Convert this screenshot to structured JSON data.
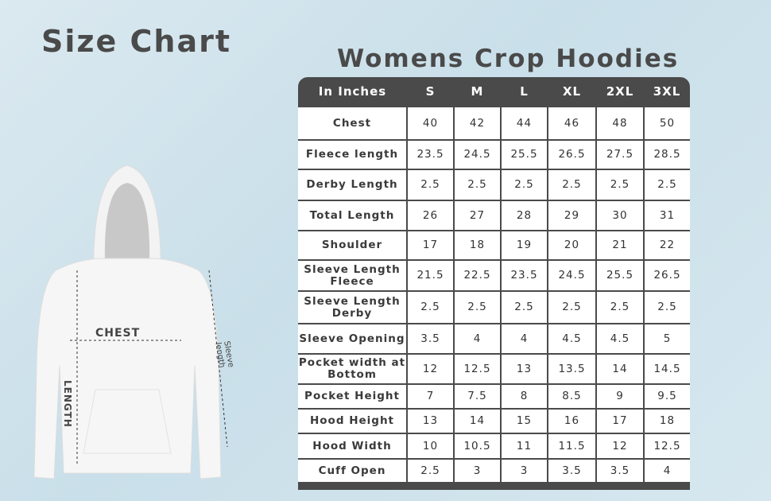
{
  "title": "Size Chart",
  "subtitle": "Womens Crop Hoodies",
  "diagram_labels": {
    "chest": "CHEST",
    "length": "LENGTH",
    "sleeve": "Sleeve length"
  },
  "table": {
    "headers": [
      "In Inches",
      "S",
      "M",
      "L",
      "XL",
      "2XL",
      "3XL"
    ],
    "rows": [
      {
        "label": "Chest",
        "values": [
          "40",
          "42",
          "44",
          "46",
          "48",
          "50"
        ]
      },
      {
        "label": "Fleece length",
        "values": [
          "23.5",
          "24.5",
          "25.5",
          "26.5",
          "27.5",
          "28.5"
        ]
      },
      {
        "label": "Derby Length",
        "values": [
          "2.5",
          "2.5",
          "2.5",
          "2.5",
          "2.5",
          "2.5"
        ]
      },
      {
        "label": "Total Length",
        "values": [
          "26",
          "27",
          "28",
          "29",
          "30",
          "31"
        ]
      },
      {
        "label": "Shoulder",
        "values": [
          "17",
          "18",
          "19",
          "20",
          "21",
          "22"
        ]
      },
      {
        "label": "Sleeve Length Fleece",
        "values": [
          "21.5",
          "22.5",
          "23.5",
          "24.5",
          "25.5",
          "26.5"
        ]
      },
      {
        "label": "Sleeve Length Derby",
        "values": [
          "2.5",
          "2.5",
          "2.5",
          "2.5",
          "2.5",
          "2.5"
        ]
      },
      {
        "label": "Sleeve Opening",
        "values": [
          "3.5",
          "4",
          "4",
          "4.5",
          "4.5",
          "5"
        ]
      },
      {
        "label": "Pocket width at Bottom",
        "values": [
          "12",
          "12.5",
          "13",
          "13.5",
          "14",
          "14.5"
        ]
      },
      {
        "label": "Pocket Height",
        "values": [
          "7",
          "7.5",
          "8",
          "8.5",
          "9",
          "9.5"
        ]
      },
      {
        "label": "Hood Height",
        "values": [
          "13",
          "14",
          "15",
          "16",
          "17",
          "18"
        ]
      },
      {
        "label": "Hood Width",
        "values": [
          "10",
          "10.5",
          "11",
          "11.5",
          "12",
          "12.5"
        ]
      },
      {
        "label": "Cuff Open",
        "values": [
          "2.5",
          "3",
          "3",
          "3.5",
          "3.5",
          "4"
        ]
      }
    ]
  }
}
